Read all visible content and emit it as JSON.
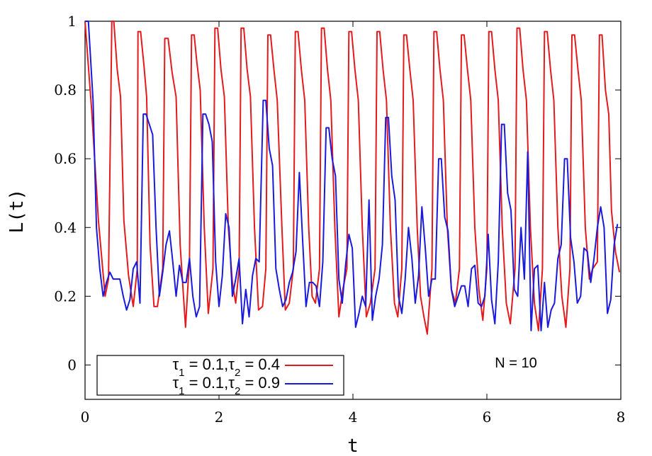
{
  "chart_data": {
    "type": "line",
    "title": "",
    "xlabel": "t",
    "ylabel": "L(t)",
    "xlim": [
      0,
      8
    ],
    "ylim": [
      -0.1,
      1
    ],
    "xticks": [
      "0",
      "2",
      "4",
      "6",
      "8"
    ],
    "yticks": [
      "0",
      "0.2",
      "0.4",
      "0.6",
      "0.8",
      "1"
    ],
    "annotation": "N = 10",
    "legend_position": "bottom-left",
    "grid": false,
    "series": [
      {
        "name_parts": [
          "τ",
          "1",
          " = 0.1,",
          "τ",
          "2",
          " = 0.4"
        ],
        "color": "#e41a1c",
        "points": [
          [
            0.0,
            1.0
          ],
          [
            0.1,
            0.74
          ],
          [
            0.2,
            0.42
          ],
          [
            0.3,
            0.2
          ],
          [
            0.35,
            0.25
          ],
          [
            0.4,
            1.0
          ],
          [
            0.43,
            1.0
          ],
          [
            0.48,
            0.86
          ],
          [
            0.53,
            0.78
          ],
          [
            0.58,
            0.42
          ],
          [
            0.65,
            0.26
          ],
          [
            0.72,
            0.17
          ],
          [
            0.78,
            0.28
          ],
          [
            0.79,
            0.97
          ],
          [
            0.83,
            0.97
          ],
          [
            0.88,
            0.87
          ],
          [
            0.92,
            0.78
          ],
          [
            0.97,
            0.35
          ],
          [
            1.03,
            0.17
          ],
          [
            1.08,
            0.17
          ],
          [
            1.16,
            0.28
          ],
          [
            1.19,
            0.95
          ],
          [
            1.24,
            0.95
          ],
          [
            1.3,
            0.85
          ],
          [
            1.36,
            0.78
          ],
          [
            1.42,
            0.35
          ],
          [
            1.47,
            0.2
          ],
          [
            1.5,
            0.11
          ],
          [
            1.56,
            0.31
          ],
          [
            1.59,
            0.96
          ],
          [
            1.63,
            0.96
          ],
          [
            1.67,
            0.88
          ],
          [
            1.72,
            0.8
          ],
          [
            1.78,
            0.4
          ],
          [
            1.84,
            0.15
          ],
          [
            1.91,
            0.28
          ],
          [
            1.94,
            0.98
          ],
          [
            1.98,
            0.98
          ],
          [
            2.03,
            0.86
          ],
          [
            2.08,
            0.78
          ],
          [
            2.14,
            0.4
          ],
          [
            2.2,
            0.24
          ],
          [
            2.25,
            0.18
          ],
          [
            2.3,
            0.28
          ],
          [
            2.33,
            0.98
          ],
          [
            2.37,
            0.98
          ],
          [
            2.42,
            0.86
          ],
          [
            2.47,
            0.78
          ],
          [
            2.53,
            0.4
          ],
          [
            2.59,
            0.16
          ],
          [
            2.65,
            0.17
          ],
          [
            2.7,
            0.28
          ],
          [
            2.73,
            0.96
          ],
          [
            2.77,
            0.96
          ],
          [
            2.82,
            0.86
          ],
          [
            2.87,
            0.77
          ],
          [
            2.94,
            0.4
          ],
          [
            2.99,
            0.16
          ],
          [
            3.05,
            0.18
          ],
          [
            3.11,
            0.28
          ],
          [
            3.14,
            0.97
          ],
          [
            3.18,
            0.97
          ],
          [
            3.23,
            0.86
          ],
          [
            3.28,
            0.77
          ],
          [
            3.34,
            0.4
          ],
          [
            3.39,
            0.2
          ],
          [
            3.44,
            0.18
          ],
          [
            3.5,
            0.28
          ],
          [
            3.53,
            0.98
          ],
          [
            3.57,
            0.98
          ],
          [
            3.62,
            0.86
          ],
          [
            3.67,
            0.77
          ],
          [
            3.73,
            0.4
          ],
          [
            3.79,
            0.14
          ],
          [
            3.85,
            0.22
          ],
          [
            3.91,
            0.28
          ],
          [
            3.94,
            0.97
          ],
          [
            3.98,
            0.97
          ],
          [
            4.03,
            0.86
          ],
          [
            4.08,
            0.77
          ],
          [
            4.14,
            0.4
          ],
          [
            4.2,
            0.14
          ],
          [
            4.26,
            0.18
          ],
          [
            4.33,
            0.28
          ],
          [
            4.36,
            0.97
          ],
          [
            4.4,
            0.97
          ],
          [
            4.45,
            0.86
          ],
          [
            4.5,
            0.77
          ],
          [
            4.56,
            0.4
          ],
          [
            4.62,
            0.18
          ],
          [
            4.67,
            0.14
          ],
          [
            4.73,
            0.28
          ],
          [
            4.76,
            0.96
          ],
          [
            4.8,
            0.96
          ],
          [
            4.85,
            0.86
          ],
          [
            4.9,
            0.77
          ],
          [
            4.96,
            0.4
          ],
          [
            5.01,
            0.2
          ],
          [
            5.06,
            0.14
          ],
          [
            5.11,
            0.09
          ],
          [
            5.18,
            0.28
          ],
          [
            5.21,
            0.97
          ],
          [
            5.25,
            0.97
          ],
          [
            5.3,
            0.86
          ],
          [
            5.35,
            0.77
          ],
          [
            5.41,
            0.4
          ],
          [
            5.47,
            0.22
          ],
          [
            5.53,
            0.18
          ],
          [
            5.59,
            0.28
          ],
          [
            5.62,
            0.96
          ],
          [
            5.66,
            0.96
          ],
          [
            5.71,
            0.86
          ],
          [
            5.76,
            0.77
          ],
          [
            5.82,
            0.4
          ],
          [
            5.88,
            0.22
          ],
          [
            5.94,
            0.13
          ],
          [
            6.0,
            0.28
          ],
          [
            6.03,
            0.97
          ],
          [
            6.07,
            0.97
          ],
          [
            6.12,
            0.86
          ],
          [
            6.17,
            0.77
          ],
          [
            6.23,
            0.4
          ],
          [
            6.29,
            0.18
          ],
          [
            6.35,
            0.12
          ],
          [
            6.42,
            0.28
          ],
          [
            6.45,
            0.98
          ],
          [
            6.49,
            0.98
          ],
          [
            6.54,
            0.86
          ],
          [
            6.59,
            0.77
          ],
          [
            6.65,
            0.4
          ],
          [
            6.71,
            0.18
          ],
          [
            6.77,
            0.1
          ],
          [
            6.83,
            0.28
          ],
          [
            6.86,
            0.97
          ],
          [
            6.9,
            0.97
          ],
          [
            6.95,
            0.86
          ],
          [
            7.0,
            0.77
          ],
          [
            7.06,
            0.4
          ],
          [
            7.12,
            0.2
          ],
          [
            7.18,
            0.11
          ],
          [
            7.24,
            0.28
          ],
          [
            7.27,
            0.96
          ],
          [
            7.31,
            0.96
          ],
          [
            7.36,
            0.86
          ],
          [
            7.41,
            0.77
          ],
          [
            7.47,
            0.4
          ],
          [
            7.53,
            0.25
          ],
          [
            7.58,
            0.28
          ],
          [
            7.65,
            0.3
          ],
          [
            7.68,
            0.96
          ],
          [
            7.72,
            0.96
          ],
          [
            7.77,
            0.8
          ],
          [
            7.82,
            0.73
          ],
          [
            7.86,
            0.45
          ],
          [
            7.92,
            0.33
          ],
          [
            7.98,
            0.27
          ]
        ]
      },
      {
        "name_parts": [
          "τ",
          "1",
          " = 0.1,",
          "τ",
          "2",
          " = 0.9"
        ],
        "color": "#1a1adc",
        "points": [
          [
            0.0,
            1.0
          ],
          [
            0.05,
            1.0
          ],
          [
            0.12,
            0.77
          ],
          [
            0.17,
            0.4
          ],
          [
            0.22,
            0.28
          ],
          [
            0.27,
            0.2
          ],
          [
            0.32,
            0.24
          ],
          [
            0.37,
            0.27
          ],
          [
            0.42,
            0.25
          ],
          [
            0.47,
            0.25
          ],
          [
            0.52,
            0.25
          ],
          [
            0.57,
            0.2
          ],
          [
            0.62,
            0.16
          ],
          [
            0.67,
            0.19
          ],
          [
            0.72,
            0.28
          ],
          [
            0.77,
            0.3
          ],
          [
            0.82,
            0.18
          ],
          [
            0.87,
            0.73
          ],
          [
            0.91,
            0.73
          ],
          [
            0.96,
            0.7
          ],
          [
            1.01,
            0.67
          ],
          [
            1.06,
            0.4
          ],
          [
            1.11,
            0.2
          ],
          [
            1.16,
            0.27
          ],
          [
            1.21,
            0.35
          ],
          [
            1.26,
            0.39
          ],
          [
            1.31,
            0.3
          ],
          [
            1.36,
            0.2
          ],
          [
            1.41,
            0.29
          ],
          [
            1.46,
            0.24
          ],
          [
            1.51,
            0.24
          ],
          [
            1.56,
            0.31
          ],
          [
            1.61,
            0.2
          ],
          [
            1.66,
            0.14
          ],
          [
            1.71,
            0.17
          ],
          [
            1.76,
            0.73
          ],
          [
            1.8,
            0.73
          ],
          [
            1.85,
            0.7
          ],
          [
            1.9,
            0.65
          ],
          [
            1.95,
            0.3
          ],
          [
            2.0,
            0.17
          ],
          [
            2.05,
            0.26
          ],
          [
            2.1,
            0.44
          ],
          [
            2.15,
            0.4
          ],
          [
            2.2,
            0.2
          ],
          [
            2.25,
            0.25
          ],
          [
            2.3,
            0.31
          ],
          [
            2.35,
            0.12
          ],
          [
            2.4,
            0.22
          ],
          [
            2.45,
            0.14
          ],
          [
            2.5,
            0.26
          ],
          [
            2.55,
            0.31
          ],
          [
            2.6,
            0.3
          ],
          [
            2.66,
            0.77
          ],
          [
            2.7,
            0.77
          ],
          [
            2.75,
            0.63
          ],
          [
            2.8,
            0.58
          ],
          [
            2.85,
            0.28
          ],
          [
            2.9,
            0.22
          ],
          [
            2.95,
            0.17
          ],
          [
            3.0,
            0.19
          ],
          [
            3.05,
            0.24
          ],
          [
            3.1,
            0.27
          ],
          [
            3.15,
            0.33
          ],
          [
            3.2,
            0.56
          ],
          [
            3.25,
            0.36
          ],
          [
            3.3,
            0.17
          ],
          [
            3.35,
            0.24
          ],
          [
            3.4,
            0.24
          ],
          [
            3.45,
            0.23
          ],
          [
            3.5,
            0.17
          ],
          [
            3.55,
            0.3
          ],
          [
            3.6,
            0.69
          ],
          [
            3.64,
            0.69
          ],
          [
            3.69,
            0.6
          ],
          [
            3.74,
            0.55
          ],
          [
            3.79,
            0.25
          ],
          [
            3.84,
            0.18
          ],
          [
            3.89,
            0.29
          ],
          [
            3.94,
            0.38
          ],
          [
            3.99,
            0.34
          ],
          [
            4.04,
            0.11
          ],
          [
            4.09,
            0.15
          ],
          [
            4.14,
            0.2
          ],
          [
            4.19,
            0.17
          ],
          [
            4.24,
            0.48
          ],
          [
            4.29,
            0.13
          ],
          [
            4.34,
            0.2
          ],
          [
            4.39,
            0.25
          ],
          [
            4.44,
            0.35
          ],
          [
            4.49,
            0.72
          ],
          [
            4.53,
            0.72
          ],
          [
            4.58,
            0.55
          ],
          [
            4.63,
            0.48
          ],
          [
            4.68,
            0.2
          ],
          [
            4.73,
            0.15
          ],
          [
            4.78,
            0.25
          ],
          [
            4.83,
            0.4
          ],
          [
            4.88,
            0.31
          ],
          [
            4.93,
            0.18
          ],
          [
            4.98,
            0.26
          ],
          [
            5.03,
            0.46
          ],
          [
            5.08,
            0.34
          ],
          [
            5.13,
            0.2
          ],
          [
            5.18,
            0.25
          ],
          [
            5.23,
            0.25
          ],
          [
            5.28,
            0.6
          ],
          [
            5.32,
            0.6
          ],
          [
            5.37,
            0.43
          ],
          [
            5.42,
            0.39
          ],
          [
            5.47,
            0.22
          ],
          [
            5.52,
            0.17
          ],
          [
            5.57,
            0.2
          ],
          [
            5.62,
            0.23
          ],
          [
            5.67,
            0.23
          ],
          [
            5.72,
            0.17
          ],
          [
            5.77,
            0.28
          ],
          [
            5.82,
            0.29
          ],
          [
            5.87,
            0.18
          ],
          [
            5.92,
            0.17
          ],
          [
            5.97,
            0.2
          ],
          [
            6.02,
            0.38
          ],
          [
            6.07,
            0.19
          ],
          [
            6.12,
            0.12
          ],
          [
            6.17,
            0.3
          ],
          [
            6.22,
            0.7
          ],
          [
            6.26,
            0.7
          ],
          [
            6.31,
            0.5
          ],
          [
            6.36,
            0.45
          ],
          [
            6.41,
            0.22
          ],
          [
            6.46,
            0.2
          ],
          [
            6.51,
            0.4
          ],
          [
            6.56,
            0.25
          ],
          [
            6.61,
            0.62
          ],
          [
            6.66,
            0.1
          ],
          [
            6.71,
            0.28
          ],
          [
            6.76,
            0.29
          ],
          [
            6.81,
            0.1
          ],
          [
            6.86,
            0.24
          ],
          [
            6.91,
            0.11
          ],
          [
            6.96,
            0.16
          ],
          [
            7.01,
            0.18
          ],
          [
            7.06,
            0.31
          ],
          [
            7.11,
            0.35
          ],
          [
            7.16,
            0.6
          ],
          [
            7.2,
            0.6
          ],
          [
            7.25,
            0.37
          ],
          [
            7.3,
            0.3
          ],
          [
            7.35,
            0.18
          ],
          [
            7.4,
            0.2
          ],
          [
            7.45,
            0.34
          ],
          [
            7.5,
            0.33
          ],
          [
            7.55,
            0.24
          ],
          [
            7.6,
            0.31
          ],
          [
            7.65,
            0.4
          ],
          [
            7.7,
            0.46
          ],
          [
            7.75,
            0.4
          ],
          [
            7.8,
            0.15
          ],
          [
            7.85,
            0.19
          ],
          [
            7.9,
            0.35
          ],
          [
            7.95,
            0.41
          ]
        ]
      }
    ]
  }
}
